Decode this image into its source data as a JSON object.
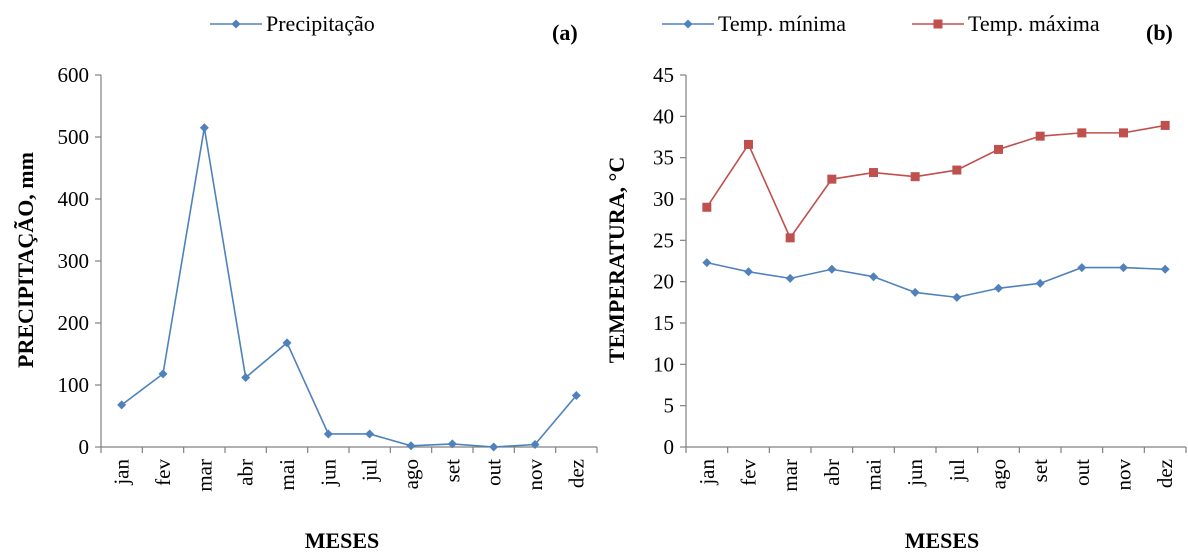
{
  "chart_data": [
    {
      "type": "line",
      "panel_label": "(a)",
      "categories": [
        "jan",
        "fev",
        "mar",
        "abr",
        "mai",
        "jun",
        "jul",
        "ago",
        "set",
        "out",
        "nov",
        "dez"
      ],
      "series": [
        {
          "name": "Precipitação",
          "color": "#4F81BD",
          "marker": "diamond",
          "values": [
            68,
            118,
            515,
            112,
            168,
            21,
            21,
            2,
            5,
            0,
            4,
            83
          ]
        }
      ],
      "xlabel": "MESES",
      "ylabel": "PRECIPITAÇÃO, mm",
      "ylim": [
        0,
        600
      ],
      "yticks": [
        0,
        100,
        200,
        300,
        400,
        500,
        600
      ],
      "grid": false,
      "legend": "top"
    },
    {
      "type": "line",
      "panel_label": "(b)",
      "categories": [
        "jan",
        "fev",
        "mar",
        "abr",
        "mai",
        "jun",
        "jul",
        "ago",
        "set",
        "out",
        "nov",
        "dez"
      ],
      "series": [
        {
          "name": "Temp. mínima",
          "color": "#4F81BD",
          "marker": "diamond",
          "values": [
            22.3,
            21.2,
            20.4,
            21.5,
            20.6,
            18.7,
            18.1,
            19.2,
            19.8,
            21.7,
            21.7,
            21.5
          ]
        },
        {
          "name": "Temp. máxima",
          "color": "#C0504D",
          "marker": "square",
          "values": [
            29.0,
            36.6,
            25.3,
            32.4,
            33.2,
            32.7,
            33.5,
            36.0,
            37.6,
            38.0,
            38.0,
            38.9
          ]
        }
      ],
      "xlabel": "MESES",
      "ylabel": "TEMPERATURA, °C",
      "ylim": [
        0,
        45
      ],
      "yticks": [
        0,
        5,
        10,
        15,
        20,
        25,
        30,
        35,
        40,
        45
      ],
      "grid": false,
      "legend": "top"
    }
  ]
}
